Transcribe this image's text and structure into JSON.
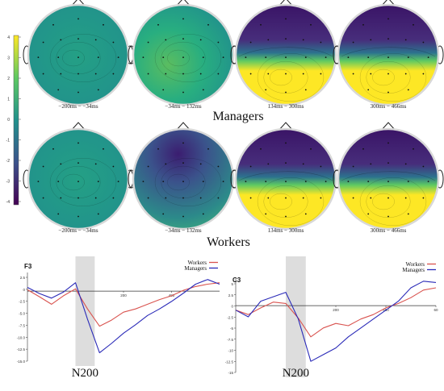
{
  "colors": {
    "colormap": [
      "#440154",
      "#472d7b",
      "#3b528b",
      "#2c728e",
      "#21918c",
      "#28ae80",
      "#5ec962",
      "#addc30",
      "#fde725"
    ],
    "workers_line": "#d9534f",
    "managers_line": "#2a2ab8",
    "n200_shade": "#d9d9d9"
  },
  "colorbar": {
    "ticks": [
      "4",
      "3",
      "2",
      "1",
      "0",
      "-1",
      "-2",
      "-3",
      "-4"
    ]
  },
  "topomaps": {
    "time_windows": [
      "−200ms − −34ms",
      "−34ms − 132ms",
      "134ms − 300ms",
      "300ms − 466ms"
    ],
    "groups": [
      {
        "label": "Managers",
        "maps": [
          "neutral",
          "mild",
          "split",
          "split"
        ]
      },
      {
        "label": "Workers",
        "maps": [
          "neutral",
          "negative",
          "split",
          "split"
        ]
      }
    ]
  },
  "chart_data": [
    {
      "type": "line",
      "title": "F3",
      "annotation": "N200",
      "legend": [
        "Workers",
        "Managers"
      ],
      "legend_position": "top-right",
      "x": [
        -200,
        -150,
        -100,
        -50,
        0,
        50,
        100,
        150,
        200,
        250,
        300,
        350,
        400,
        450,
        500,
        550,
        600
      ],
      "xtick_labels": [
        "200",
        "400"
      ],
      "ytick_labels": [
        "2.5",
        "0",
        "-2.5",
        "-5.0",
        "-7.5",
        "-10.0",
        "-12.5",
        "-15.0"
      ],
      "ylim": [
        -15,
        4
      ],
      "series": [
        {
          "name": "Workers",
          "values": [
            0.3,
            -1.2,
            -2.8,
            -1.0,
            0.5,
            -3.8,
            -7.5,
            -6.2,
            -4.5,
            -3.8,
            -2.8,
            -1.8,
            -1.0,
            0.2,
            1.0,
            1.5,
            1.8
          ]
        },
        {
          "name": "Managers",
          "values": [
            0.8,
            -0.5,
            -1.5,
            -0.2,
            1.8,
            -6.0,
            -13.2,
            -11.2,
            -9.0,
            -7.2,
            -5.2,
            -3.8,
            -2.2,
            -0.4,
            1.5,
            2.5,
            1.5
          ]
        }
      ],
      "shaded_range": [
        0,
        80
      ]
    },
    {
      "type": "line",
      "title": "C3",
      "annotation": "N200",
      "legend": [
        "Workers",
        "Managers"
      ],
      "legend_position": "top-right",
      "x": [
        -200,
        -150,
        -100,
        -50,
        0,
        50,
        100,
        150,
        200,
        250,
        300,
        350,
        400,
        450,
        500,
        550,
        600
      ],
      "xtick_labels": [
        "200",
        "400",
        "60"
      ],
      "ytick_labels": [
        "5",
        "2.5",
        "0",
        "-2.5",
        "-5",
        "-7.5",
        "-10",
        "-12.5",
        "-15"
      ],
      "ylim": [
        -15,
        6
      ],
      "series": [
        {
          "name": "Workers",
          "values": [
            -1.0,
            -2.0,
            -0.5,
            0.8,
            0.5,
            -2.8,
            -7.0,
            -5.0,
            -4.0,
            -4.5,
            -3.0,
            -2.0,
            -0.5,
            0.5,
            1.8,
            3.5,
            4.0
          ]
        },
        {
          "name": "Managers",
          "values": [
            -1.0,
            -2.5,
            1.0,
            2.0,
            3.0,
            -3.0,
            -12.5,
            -11.0,
            -9.5,
            -7.0,
            -5.0,
            -3.0,
            -1.0,
            1.0,
            4.0,
            5.5,
            5.2
          ]
        }
      ],
      "shaded_range": [
        0,
        80
      ]
    }
  ]
}
